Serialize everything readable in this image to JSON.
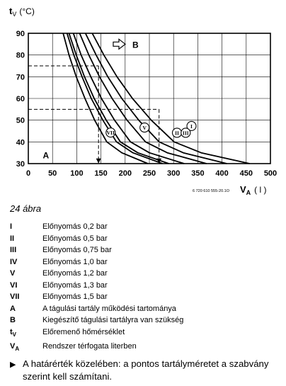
{
  "chart_data": {
    "type": "line",
    "ylabel_main": "t",
    "ylabel_sub": "V",
    "ylabel_unit": "(°C)",
    "xlabel_main": "V",
    "xlabel_sub": "A",
    "xlabel_unit": "( l )",
    "xlim": [
      0,
      500
    ],
    "ylim": [
      30,
      90
    ],
    "x_ticks": [
      "0",
      "50",
      "100",
      "150",
      "200",
      "250",
      "300",
      "350",
      "400",
      "450",
      "500"
    ],
    "y_ticks": [
      "30",
      "40",
      "50",
      "60",
      "70",
      "80",
      "90"
    ],
    "grid": true,
    "series": [
      {
        "name": "I",
        "x": [
          132,
          156,
          183,
          215,
          254,
          301,
          357,
          457
        ],
        "y": [
          90,
          80,
          70,
          60,
          50,
          40,
          35,
          30
        ]
      },
      {
        "name": "II",
        "x": [
          118,
          140,
          164,
          193,
          228,
          270,
          320,
          410
        ],
        "y": [
          90,
          80,
          70,
          60,
          50,
          40,
          35,
          30
        ]
      },
      {
        "name": "III",
        "x": [
          106,
          125,
          147,
          173,
          204,
          242,
          287,
          368
        ],
        "y": [
          90,
          80,
          70,
          60,
          50,
          40,
          35,
          30
        ]
      },
      {
        "name": "IV",
        "x": [
          93,
          109,
          129,
          151,
          178,
          211,
          250,
          322
        ],
        "y": [
          90,
          80,
          70,
          60,
          50,
          40,
          35,
          30
        ]
      },
      {
        "name": "V",
        "x": [
          84,
          99,
          116,
          136,
          161,
          190,
          226,
          290
        ],
        "y": [
          90,
          80,
          70,
          60,
          50,
          40,
          35,
          30
        ]
      },
      {
        "name": "VI",
        "x": [
          80,
          94,
          111,
          130,
          154,
          182,
          216,
          277
        ],
        "y": [
          90,
          80,
          70,
          60,
          50,
          40,
          35,
          30
        ]
      },
      {
        "name": "VII",
        "x": [
          72,
          84,
          99,
          117,
          137,
          162,
          193,
          247
        ],
        "y": [
          90,
          80,
          70,
          60,
          50,
          40,
          35,
          30
        ]
      }
    ],
    "curve_labels": [
      {
        "text": "I",
        "x": 337,
        "y": 47.3
      },
      {
        "text": "II",
        "x": 307,
        "y": 44.2
      },
      {
        "text": "III",
        "x": 325,
        "y": 44.2
      },
      {
        "text": "V",
        "x": 240,
        "y": 46.6
      },
      {
        "text": "VII",
        "x": 170,
        "y": 44.3
      }
    ],
    "example_lines": [
      {
        "from": [
          0,
          75
        ],
        "to": [
          145,
          75
        ],
        "dashed": true
      },
      {
        "from": [
          145,
          75
        ],
        "to": [
          145,
          30
        ],
        "dashed": true,
        "arrow": true
      },
      {
        "from": [
          0,
          55
        ],
        "to": [
          270,
          55
        ],
        "dashed": true
      },
      {
        "from": [
          270,
          55
        ],
        "to": [
          270,
          30
        ],
        "dashed": true,
        "arrow": true
      }
    ],
    "region_labels": [
      {
        "text": "A",
        "x": 30,
        "y": 34
      },
      {
        "text": "B",
        "x": 215,
        "y": 85
      }
    ],
    "arrow_icon": "hollow-right-arrow-icon",
    "doc_code": "6 720 610 555-20.1O"
  },
  "caption": "24 ábra",
  "legend": [
    {
      "key": "I",
      "text": "Előnyomás 0,2 bar"
    },
    {
      "key": "II",
      "text": "Előnyomás 0,5 bar"
    },
    {
      "key": "III",
      "text": "Előnyomás 0,75 bar"
    },
    {
      "key": "IV",
      "text": "Előnyomás 1,0 bar"
    },
    {
      "key": "V",
      "text": "Előnyomás 1,2 bar"
    },
    {
      "key": "VI",
      "text": "Előnyomás 1,3 bar"
    },
    {
      "key": "VII",
      "text": "Előnyomás 1,5 bar"
    },
    {
      "key": "A",
      "text": "A tágulási tartály működési tartománya"
    },
    {
      "key": "B",
      "text": "Kiegészítő tágulási tartályra van szükség"
    },
    {
      "key_main": "t",
      "key_sub": "V",
      "text": "Előremenő hőmérséklet"
    },
    {
      "key_main": "V",
      "key_sub": "A",
      "text": "Rendszer térfogata literben"
    }
  ],
  "note": {
    "bullet_icon": "triangle-bullet-icon",
    "text": "A határérték közelében: a pontos tartályméretet a szabvány szerint kell számítani."
  }
}
